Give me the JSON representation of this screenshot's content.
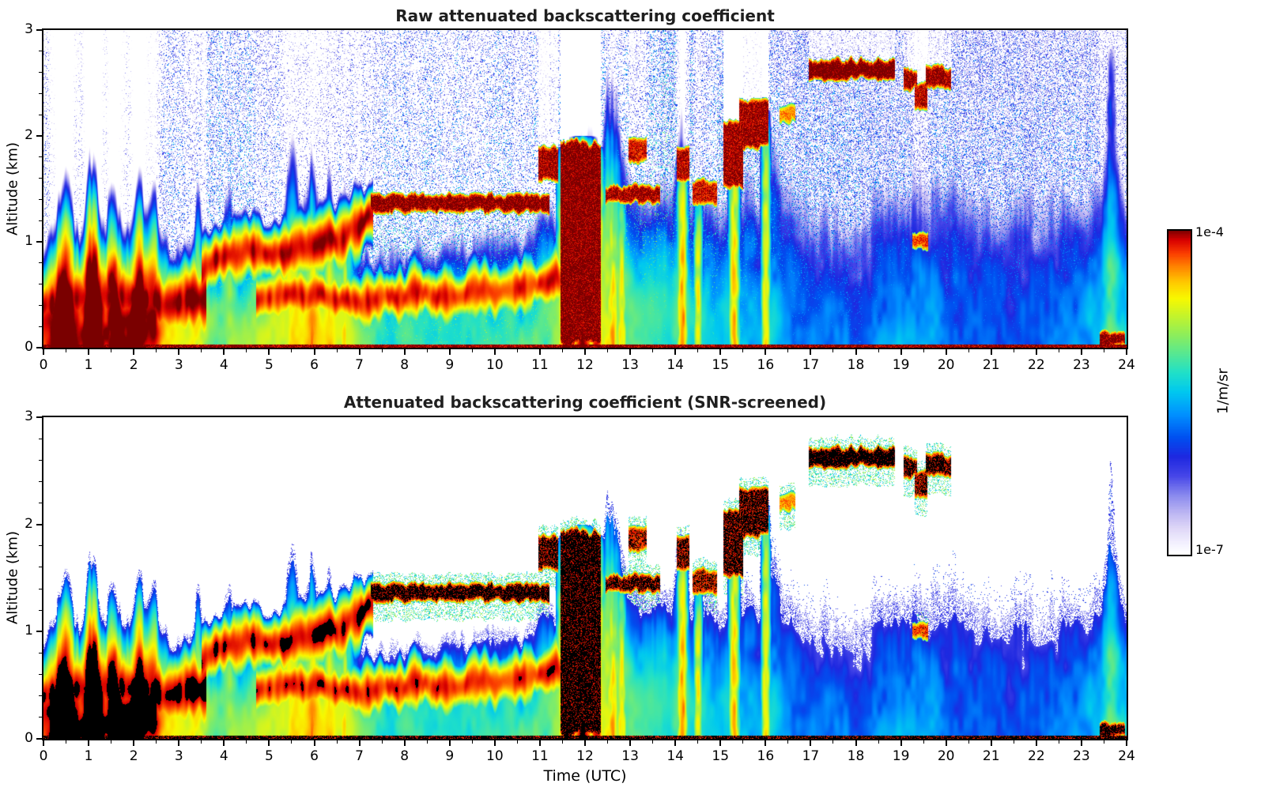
{
  "chart_data": {
    "type": "heatmap",
    "panels": [
      {
        "title": "Raw attenuated backscattering coefficient",
        "screened": false
      },
      {
        "title": "Attenuated backscattering coefficient (SNR-screened)",
        "screened": true
      }
    ],
    "x": {
      "label": "Time (UTC)",
      "min": 0,
      "max": 24,
      "major_ticks": [
        0,
        1,
        2,
        3,
        4,
        5,
        6,
        7,
        8,
        9,
        10,
        11,
        12,
        13,
        14,
        15,
        16,
        17,
        18,
        19,
        20,
        21,
        22,
        23,
        24
      ],
      "minor_step": 0.5
    },
    "y": {
      "label": "Altitude (km)",
      "min": 0,
      "max": 3,
      "major_ticks": [
        0,
        1,
        2,
        3
      ],
      "minor_step": 0.2
    },
    "colorbar": {
      "unit_label": "1/m/sr",
      "top_label": "1e-4",
      "bottom_label": "1e-7",
      "scale": "log",
      "vmin": 1e-07,
      "vmax": 0.0001
    },
    "colormap_stops": [
      [
        0.0,
        "#ffffff"
      ],
      [
        0.03,
        "#f4f2ff"
      ],
      [
        0.08,
        "#ded6f7"
      ],
      [
        0.13,
        "#b9b3f2"
      ],
      [
        0.18,
        "#8a8aee"
      ],
      [
        0.24,
        "#4646e8"
      ],
      [
        0.3,
        "#1e28e0"
      ],
      [
        0.36,
        "#0050f0"
      ],
      [
        0.43,
        "#0090ff"
      ],
      [
        0.5,
        "#00c8f0"
      ],
      [
        0.56,
        "#20e0c8"
      ],
      [
        0.62,
        "#58e890"
      ],
      [
        0.68,
        "#90ee58"
      ],
      [
        0.74,
        "#c8f428"
      ],
      [
        0.79,
        "#f8f800"
      ],
      [
        0.84,
        "#ffc800"
      ],
      [
        0.89,
        "#ff8000"
      ],
      [
        0.93,
        "#fa3c00"
      ],
      [
        0.97,
        "#d80000"
      ],
      [
        1.0,
        "#7a0000"
      ]
    ],
    "features": {
      "profile_exponent": 2.6,
      "bl_amp_log10": [
        [
          0,
          -4.05
        ],
        [
          1,
          -4.0
        ],
        [
          2,
          -4.05
        ],
        [
          2.6,
          -4.4
        ],
        [
          3.2,
          -4.85
        ],
        [
          4,
          -5.0
        ],
        [
          4.6,
          -4.95
        ],
        [
          5.2,
          -4.8
        ],
        [
          6,
          -4.75
        ],
        [
          6.8,
          -4.9
        ],
        [
          7.5,
          -5.25
        ],
        [
          9,
          -5.3
        ],
        [
          10.5,
          -5.25
        ],
        [
          11.4,
          -5.0
        ],
        [
          12,
          -4.7
        ],
        [
          12.7,
          -4.9
        ],
        [
          13.3,
          -5.3
        ],
        [
          14,
          -5.3
        ],
        [
          15,
          -5.45
        ],
        [
          16,
          -5.6
        ],
        [
          17,
          -5.75
        ],
        [
          18,
          -5.8
        ],
        [
          19,
          -5.6
        ],
        [
          20,
          -5.75
        ],
        [
          21,
          -5.85
        ],
        [
          22,
          -5.85
        ],
        [
          23,
          -5.7
        ],
        [
          23.6,
          -5.4
        ],
        [
          24,
          -5.4
        ]
      ],
      "bl_depth_km": [
        [
          0,
          0.55
        ],
        [
          1,
          0.62
        ],
        [
          2,
          0.58
        ],
        [
          3,
          0.48
        ],
        [
          4,
          0.55
        ],
        [
          5,
          0.62
        ],
        [
          6,
          0.65
        ],
        [
          7,
          0.58
        ],
        [
          8,
          0.55
        ],
        [
          9,
          0.6
        ],
        [
          10,
          0.62
        ],
        [
          11,
          0.7
        ],
        [
          12,
          1.0
        ],
        [
          12.7,
          1.05
        ],
        [
          13.5,
          0.85
        ],
        [
          14,
          0.9
        ],
        [
          15,
          0.92
        ],
        [
          16,
          1.0
        ],
        [
          17,
          0.95
        ],
        [
          18,
          0.92
        ],
        [
          19,
          1.05
        ],
        [
          20,
          1.05
        ],
        [
          21,
          0.98
        ],
        [
          22,
          1.0
        ],
        [
          23,
          1.05
        ],
        [
          24,
          1.05
        ]
      ],
      "plumes": [
        [
          0.45,
          2.6
        ],
        [
          1.1,
          3.2
        ],
        [
          1.55,
          2.2
        ],
        [
          2.1,
          2.6
        ],
        [
          2.45,
          2.2
        ],
        [
          3.4,
          2.6
        ],
        [
          4.1,
          1.6
        ],
        [
          5.5,
          2.2
        ],
        [
          5.95,
          2.2
        ],
        [
          6.35,
          2.0
        ],
        [
          6.7,
          1.7
        ],
        [
          12.55,
          1.6
        ],
        [
          14.15,
          1.9
        ],
        [
          16.1,
          1.4
        ],
        [
          23.65,
          2.2
        ]
      ],
      "layers": [
        {
          "name": "morning-low-aerosol",
          "t0": 0,
          "t1": 3.6,
          "path": [
            [
              0,
              0.42
            ],
            [
              1,
              0.5
            ],
            [
              2,
              0.45
            ],
            [
              3,
              0.4
            ],
            [
              3.6,
              0.5
            ]
          ],
          "thickness": 0.13,
          "amp_log10": -4.0,
          "seed": 101
        },
        {
          "name": "rising-aerosol-layer",
          "t0": 3.5,
          "t1": 7.3,
          "path": [
            [
              3.5,
              0.72
            ],
            [
              4,
              0.85
            ],
            [
              4.5,
              0.9
            ],
            [
              5,
              0.86
            ],
            [
              5.5,
              0.92
            ],
            [
              6,
              1.0
            ],
            [
              6.5,
              1.02
            ],
            [
              7,
              1.15
            ],
            [
              7.3,
              1.25
            ]
          ],
          "thickness": 0.1,
          "amp_log10": -4.05,
          "seed": 102
        },
        {
          "name": "low-aerosol-band",
          "t0": 4.7,
          "t1": 11.55,
          "path": [
            [
              4.7,
              0.45
            ],
            [
              6,
              0.5
            ],
            [
              7,
              0.44
            ],
            [
              8,
              0.5
            ],
            [
              9,
              0.5
            ],
            [
              10,
              0.55
            ],
            [
              11,
              0.6
            ],
            [
              11.55,
              0.66
            ]
          ],
          "thickness": 0.09,
          "amp_log10": -4.15,
          "seed": 103
        }
      ],
      "clouds": [
        {
          "name": "stratus-band",
          "t0": 7.25,
          "t1": 11.2,
          "z0": 1.27,
          "z1": 1.46,
          "amp_log10": -3.95,
          "seed": 201
        },
        {
          "name": "pre-rain-cloud",
          "t0": 10.95,
          "t1": 11.4,
          "z0": 1.55,
          "z1": 1.9,
          "amp_log10": -4.0,
          "seed": 202
        },
        {
          "name": "rain-column",
          "t0": 11.45,
          "t1": 12.35,
          "z0": 0.02,
          "z1": 1.95,
          "amp_log10": -3.95,
          "seed": 203,
          "jitter": 1.5
        },
        {
          "name": "post-rain-band",
          "t0": 12.45,
          "t1": 13.65,
          "z0": 1.36,
          "z1": 1.54,
          "amp_log10": -4.0,
          "seed": 204
        },
        {
          "name": "midlevel-patch-13",
          "t0": 12.95,
          "t1": 13.35,
          "z0": 1.75,
          "z1": 2.0,
          "amp_log10": -4.1,
          "seed": 205
        },
        {
          "name": "cloud-14a",
          "t0": 14.02,
          "t1": 14.3,
          "z0": 1.55,
          "z1": 1.92,
          "amp_log10": -4.05,
          "seed": 206
        },
        {
          "name": "cloud-14b",
          "t0": 14.38,
          "t1": 14.92,
          "z0": 1.35,
          "z1": 1.6,
          "amp_log10": -4.1,
          "seed": 207
        },
        {
          "name": "cloud-15a",
          "t0": 15.05,
          "t1": 15.5,
          "z0": 1.5,
          "z1": 2.15,
          "amp_log10": -4.0,
          "seed": 208
        },
        {
          "name": "cloud-15b",
          "t0": 15.4,
          "t1": 16.05,
          "z0": 1.88,
          "z1": 2.35,
          "amp_log10": -4.0,
          "seed": 209
        },
        {
          "name": "cloud-16",
          "t0": 16.3,
          "t1": 16.65,
          "z0": 2.12,
          "z1": 2.3,
          "amp_log10": -4.35,
          "seed": 210
        },
        {
          "name": "high-cloud-17-19",
          "t0": 16.95,
          "t1": 18.85,
          "z0": 2.52,
          "z1": 2.73,
          "amp_log10": -3.9,
          "seed": 211
        },
        {
          "name": "cloud-19a",
          "t0": 19.05,
          "t1": 19.35,
          "z0": 2.42,
          "z1": 2.63,
          "amp_log10": -4.0,
          "seed": 212
        },
        {
          "name": "cloud-19b",
          "t0": 19.3,
          "t1": 19.58,
          "z0": 2.25,
          "z1": 2.5,
          "amp_log10": -4.05,
          "seed": 213
        },
        {
          "name": "cloud-19c",
          "t0": 19.55,
          "t1": 20.1,
          "z0": 2.45,
          "z1": 2.66,
          "amp_log10": -4.0,
          "seed": 214
        },
        {
          "name": "low-cloud-19",
          "t0": 19.25,
          "t1": 19.6,
          "z0": 0.93,
          "z1": 1.1,
          "amp_log10": -4.2,
          "seed": 215
        },
        {
          "name": "surface-plume-23",
          "t0": 23.4,
          "t1": 23.95,
          "z0": 0.0,
          "z1": 0.17,
          "amp_log10": -3.95,
          "seed": 216
        }
      ],
      "streaks": [
        {
          "t": 1.1,
          "w": 0.07,
          "ztop": 1.15,
          "amp_log10": -4.5
        },
        {
          "t": 5.5,
          "w": 0.08,
          "ztop": 1.0,
          "amp_log10": -4.45
        },
        {
          "t": 5.95,
          "w": 0.08,
          "ztop": 1.05,
          "amp_log10": -4.4
        },
        {
          "t": 6.35,
          "w": 0.07,
          "ztop": 1.1,
          "amp_log10": -4.5
        },
        {
          "t": 6.65,
          "w": 0.06,
          "ztop": 1.05,
          "amp_log10": -4.55
        },
        {
          "t": 11.6,
          "w": 0.1,
          "ztop": 1.9,
          "amp_log10": -4.1
        },
        {
          "t": 11.95,
          "w": 0.12,
          "ztop": 2.0,
          "amp_log10": -4.05
        },
        {
          "t": 12.25,
          "w": 0.08,
          "ztop": 1.9,
          "amp_log10": -4.15
        },
        {
          "t": 12.6,
          "w": 0.07,
          "ztop": 1.45,
          "amp_log10": -4.45
        },
        {
          "t": 12.8,
          "w": 0.06,
          "ztop": 1.4,
          "amp_log10": -4.5
        },
        {
          "t": 14.15,
          "w": 0.06,
          "ztop": 1.85,
          "amp_log10": -4.35
        },
        {
          "t": 14.5,
          "w": 0.05,
          "ztop": 1.45,
          "amp_log10": -4.5
        },
        {
          "t": 15.3,
          "w": 0.06,
          "ztop": 2.0,
          "amp_log10": -4.4
        },
        {
          "t": 16.0,
          "w": 0.05,
          "ztop": 2.25,
          "amp_log10": -4.5
        },
        {
          "t": 23.65,
          "w": 0.06,
          "ztop": 2.85,
          "amp_log10": -5.6
        }
      ],
      "surface_line_km": 0.03,
      "noise_max_log10": [
        [
          0,
          -5.1
        ],
        [
          3,
          -5.0
        ],
        [
          8,
          -4.95
        ],
        [
          12,
          -4.95
        ],
        [
          13.5,
          -5.1
        ],
        [
          15,
          -5.35
        ],
        [
          16.5,
          -5.6
        ],
        [
          18,
          -5.75
        ],
        [
          21,
          -5.85
        ],
        [
          24,
          -5.85
        ]
      ],
      "noise_density": 0.8,
      "screen_floor_log10": -6.5,
      "screen_floor_slope": 0.3,
      "black_threshold": 8.5e-05,
      "attenuation_k": 30000
    }
  }
}
